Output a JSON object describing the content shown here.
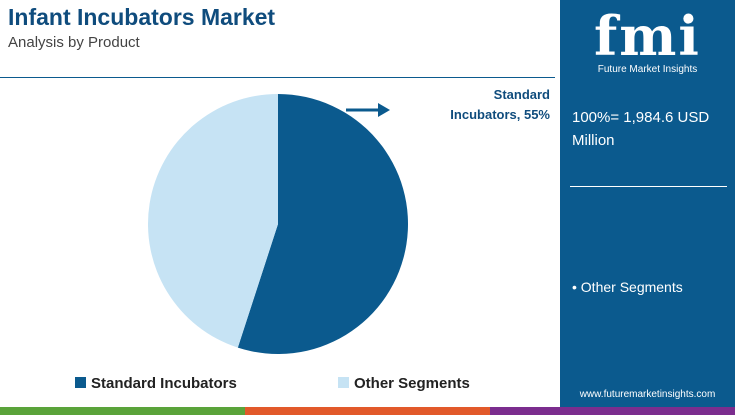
{
  "chart_data": {
    "type": "pie",
    "title": "Infant Incubators Market",
    "subtitle": "Analysis by Product",
    "categories": [
      "Standard Incubators",
      "Other Segments"
    ],
    "values": [
      55,
      45
    ],
    "colors": [
      "#0b5a8e",
      "#c6e3f4"
    ],
    "annotation": "Standard Incubators, 55%",
    "legend": "bottom"
  },
  "sidebar": {
    "logo": "fmi",
    "brand": "Future Market Insights",
    "total": "100%= 1,984.6 USD Million",
    "note": "• Other Segments",
    "website": "www.futuremarketinsights.com"
  }
}
